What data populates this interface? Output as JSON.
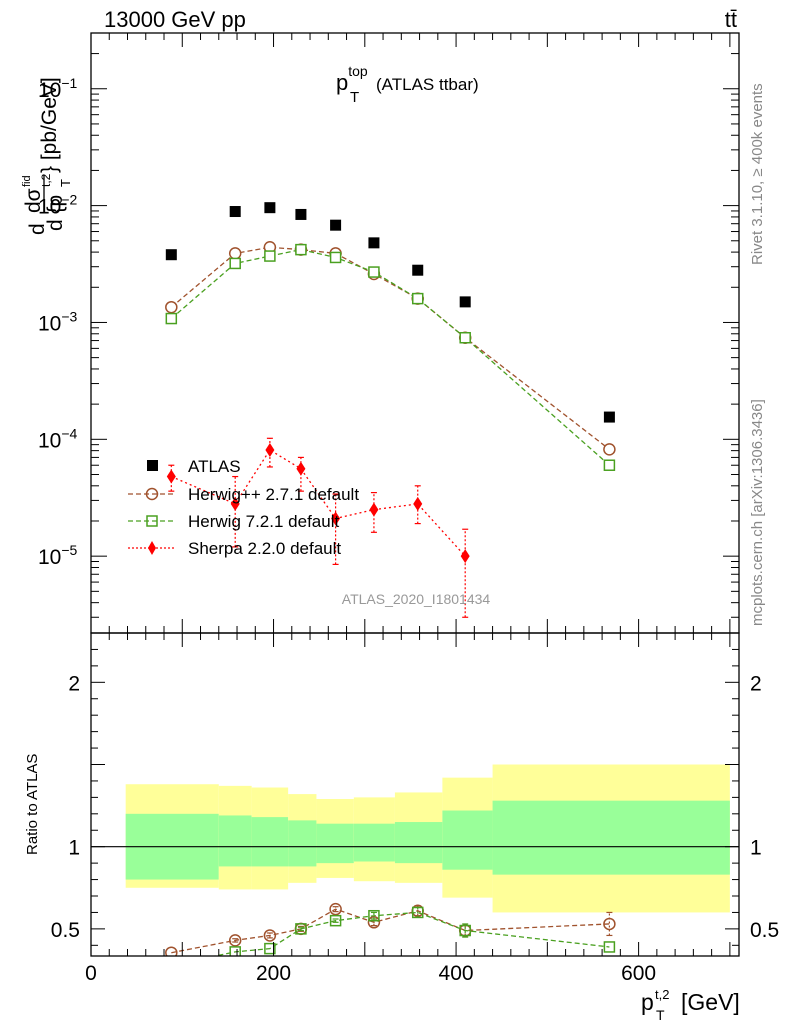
{
  "header": {
    "beam_label": "13000 GeV pp",
    "process_label": "tt̄"
  },
  "side_text": {
    "rivet": "Rivet 3.1.10, ≥ 400k events",
    "mcplots": "mcplots.cern.ch [arXiv:1306.3436]"
  },
  "colors": {
    "atlas": "#000000",
    "herwigpp": "#a0522d",
    "herwig7": "#4aa020",
    "sherpa": "#ff0000",
    "band_inner": "#99ff99",
    "band_outer": "#ffff99"
  },
  "chart_data": [
    {
      "type": "scatter",
      "title": {
        "main": "p",
        "sup": "top",
        "sub": "T",
        "suffix": "(ATLAS ttbar)"
      },
      "ylabel": "dσ^fid / d{p_T^{t,2}} [pb/GeV]",
      "yscale": "log",
      "xlim": [
        0,
        710
      ],
      "ylim": [
        2.2e-06,
        0.3
      ],
      "yticks": [
        {
          "value": 1e-05,
          "base": "10",
          "exp": "−5"
        },
        {
          "value": 0.0001,
          "base": "10",
          "exp": "−4"
        },
        {
          "value": 0.001,
          "base": "10",
          "exp": "−3"
        },
        {
          "value": 0.01,
          "base": "10",
          "exp": "−2"
        },
        {
          "value": 0.1,
          "base": "10",
          "exp": "−1"
        }
      ],
      "watermark": "ATLAS_2020_I1801434",
      "series": [
        {
          "name": "ATLAS",
          "style": "square",
          "x": [
            88,
            158,
            196,
            230,
            268,
            310,
            358,
            410,
            568
          ],
          "y": [
            0.0038,
            0.0089,
            0.0096,
            0.0084,
            0.0068,
            0.0048,
            0.0028,
            0.0015,
            0.000155
          ]
        },
        {
          "name": "Herwig++ 2.7.1 default",
          "style": "circle",
          "x": [
            88,
            158,
            196,
            230,
            268,
            310,
            358,
            410,
            568
          ],
          "y": [
            0.00135,
            0.0039,
            0.0044,
            0.0042,
            0.0039,
            0.0026,
            0.0016,
            0.00074,
            8.2e-05
          ]
        },
        {
          "name": "Herwig 7.2.1 default",
          "style": "opensquare",
          "x": [
            88,
            158,
            196,
            230,
            268,
            310,
            358,
            410,
            568
          ],
          "y": [
            0.00108,
            0.0032,
            0.0037,
            0.0042,
            0.0036,
            0.0027,
            0.0016,
            0.00074,
            6e-05
          ]
        },
        {
          "name": "Sherpa 2.2.0 default",
          "style": "diamond",
          "x": [
            88,
            158,
            196,
            230,
            268,
            310,
            358,
            410
          ],
          "y": [
            4.8e-05,
            2.8e-05,
            8.1e-05,
            5.6e-05,
            2.1e-05,
            2.5e-05,
            2.8e-05,
            1e-05
          ],
          "ylo": [
            3.6e-05,
            1.2e-05,
            5.8e-05,
            3.6e-05,
            8.5e-06,
            1.6e-05,
            1.9e-05,
            3e-06
          ],
          "yhi": [
            6e-05,
            4.8e-05,
            0.000102,
            7e-05,
            3.4e-05,
            3.5e-05,
            4e-05,
            1.7e-05
          ]
        }
      ]
    },
    {
      "type": "scatter",
      "ylabel": "Ratio to ATLAS",
      "xlabel": "p_T^{t,2} [GeV]",
      "xlim": [
        0,
        710
      ],
      "ylim": [
        0.335,
        2.3
      ],
      "xticks": [
        {
          "value": 0,
          "label": "0"
        },
        {
          "value": 200,
          "label": "200"
        },
        {
          "value": 400,
          "label": "400"
        },
        {
          "value": 600,
          "label": "600"
        }
      ],
      "yticks": [
        {
          "value": 0.5,
          "label": "0.5"
        },
        {
          "value": 1,
          "label": "1"
        },
        {
          "value": 2,
          "label": "2"
        }
      ],
      "bands": {
        "edges": [
          38,
          140,
          176,
          216,
          247,
          288,
          333,
          385,
          440,
          700
        ],
        "inner_lo": [
          0.8,
          0.88,
          0.88,
          0.88,
          0.9,
          0.91,
          0.9,
          0.86,
          0.83
        ],
        "inner_hi": [
          1.2,
          1.19,
          1.18,
          1.16,
          1.14,
          1.14,
          1.15,
          1.22,
          1.28
        ],
        "outer_lo": [
          0.75,
          0.74,
          0.74,
          0.78,
          0.81,
          0.79,
          0.78,
          0.69,
          0.6
        ],
        "outer_hi": [
          1.38,
          1.37,
          1.36,
          1.32,
          1.29,
          1.3,
          1.33,
          1.42,
          1.5
        ]
      },
      "series": [
        {
          "name": "Herwig++ 2.7.1 default",
          "style": "circle",
          "x": [
            88,
            158,
            196,
            230,
            268,
            310,
            358,
            410,
            568
          ],
          "y": [
            0.355,
            0.43,
            0.46,
            0.5,
            0.62,
            0.54,
            0.61,
            0.49,
            0.53
          ],
          "err": [
            0,
            0.01,
            0.015,
            0.015,
            0.015,
            0.02,
            0.03,
            0.03,
            0.07
          ]
        },
        {
          "name": "Herwig 7.2.1 default",
          "style": "opensquare",
          "x": [
            88,
            158,
            196,
            230,
            268,
            310,
            358,
            410,
            568
          ],
          "y": [
            0.28,
            0.36,
            0.38,
            0.5,
            0.55,
            0.58,
            0.6,
            0.49,
            0.39
          ],
          "err": [
            0,
            0,
            0,
            0.01,
            0.01,
            0.02,
            0.03,
            0.04,
            0
          ]
        }
      ]
    }
  ]
}
